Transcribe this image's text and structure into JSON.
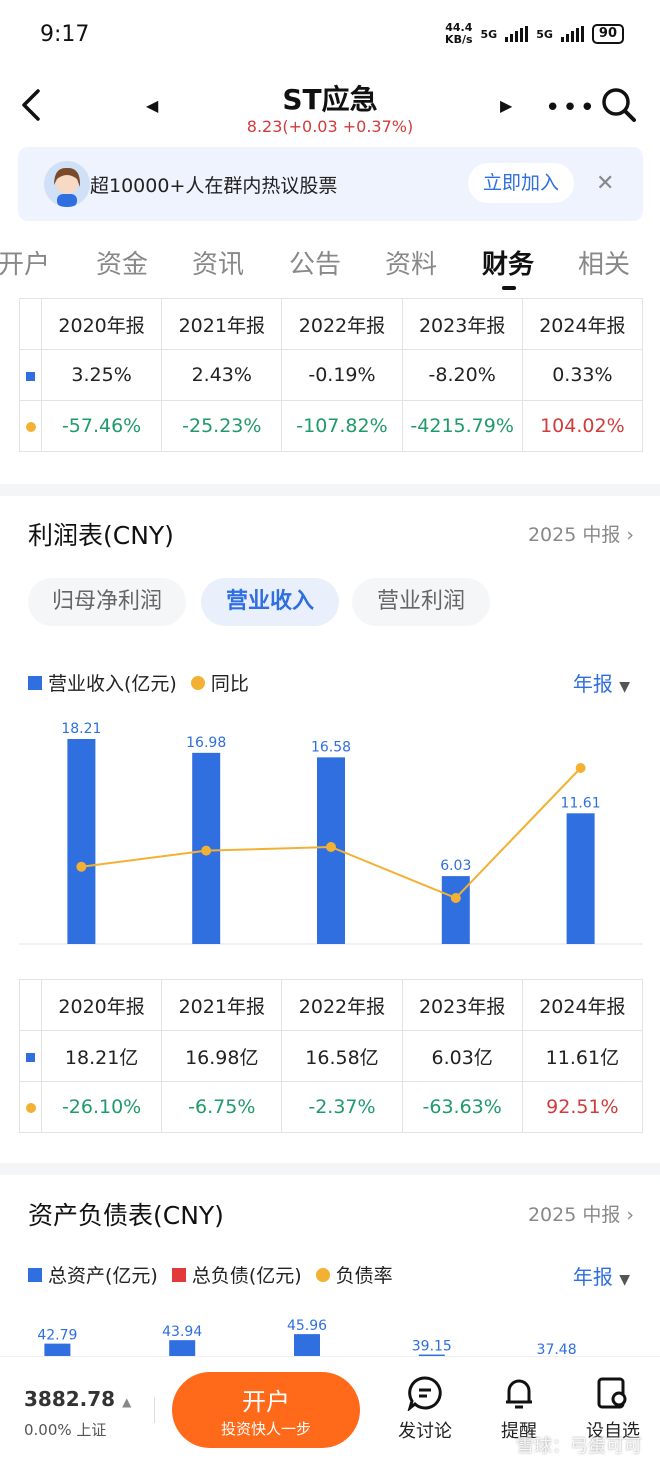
{
  "status_bar": {
    "time": "9:17",
    "speed_value": "44.4",
    "speed_unit": "KB/s",
    "net1": "5G",
    "net2": "5G",
    "battery": "90"
  },
  "header": {
    "stock_name": "ST应急",
    "price_line": "8.23(+0.03 +0.37%)"
  },
  "banner": {
    "text": "超10000+人在群内热议股票",
    "join_label": "立即加入"
  },
  "tabs": [
    {
      "label": "开户"
    },
    {
      "label": "资金"
    },
    {
      "label": "资讯"
    },
    {
      "label": "公告"
    },
    {
      "label": "资料"
    },
    {
      "label": "财务"
    },
    {
      "label": "相关"
    }
  ],
  "top_table": {
    "headers": [
      "2020年报",
      "2021年报",
      "2022年报",
      "2023年报",
      "2024年报"
    ],
    "row1": [
      "3.25%",
      "2.43%",
      "-0.19%",
      "-8.20%",
      "0.33%"
    ],
    "row2": [
      "-57.46%",
      "-25.23%",
      "-107.82%",
      "-4215.79%",
      "104.02%"
    ]
  },
  "income": {
    "title": "利润表(CNY)",
    "report_link": "2025 中报",
    "pills": [
      "归母净利润",
      "营业收入",
      "营业利润"
    ],
    "legend_bar": "营业收入(亿元)",
    "legend_line": "同比",
    "period": "年报"
  },
  "chart_data": {
    "type": "bar",
    "categories": [
      "2020年报",
      "2021年报",
      "2022年报",
      "2023年报",
      "2024年报"
    ],
    "series": [
      {
        "name": "营业收入(亿元)",
        "type": "bar",
        "values": [
          18.21,
          16.98,
          16.58,
          6.03,
          11.61
        ],
        "color": "#2f6fe0"
      },
      {
        "name": "同比",
        "type": "line",
        "values": [
          -26.1,
          -6.75,
          -2.37,
          -63.63,
          92.51
        ],
        "color": "#f3b134"
      }
    ],
    "title": "",
    "xlabel": "",
    "ylabel": "",
    "ylim": [
      0,
      18.21
    ]
  },
  "income_table": {
    "headers": [
      "2020年报",
      "2021年报",
      "2022年报",
      "2023年报",
      "2024年报"
    ],
    "row1": [
      "18.21亿",
      "16.98亿",
      "16.58亿",
      "6.03亿",
      "11.61亿"
    ],
    "row2": [
      "-26.10%",
      "-6.75%",
      "-2.37%",
      "-63.63%",
      "92.51%"
    ]
  },
  "balance": {
    "title": "资产负债表(CNY)",
    "report_link": "2025 中报",
    "legend_assets": "总资产(亿元)",
    "legend_liab": "总负债(亿元)",
    "legend_ratio": "负债率",
    "period": "年报",
    "visible_labels": [
      "42.79",
      "43.94",
      "45.96",
      "39.15",
      "37.48"
    ]
  },
  "bottom": {
    "index_value": "3882.78",
    "index_sub": "0.00% 上证",
    "open_main": "开户",
    "open_sub": "投资快人一步",
    "nav": [
      "发讨论",
      "提醒",
      "设自选"
    ],
    "watermark": "雪球：弓蛋可可"
  },
  "colors": {
    "accent": "#2f6fe0",
    "up": "#d23b3b",
    "down": "#1f9a6b",
    "line": "#f3b134",
    "cta": "#ff6a1a"
  }
}
